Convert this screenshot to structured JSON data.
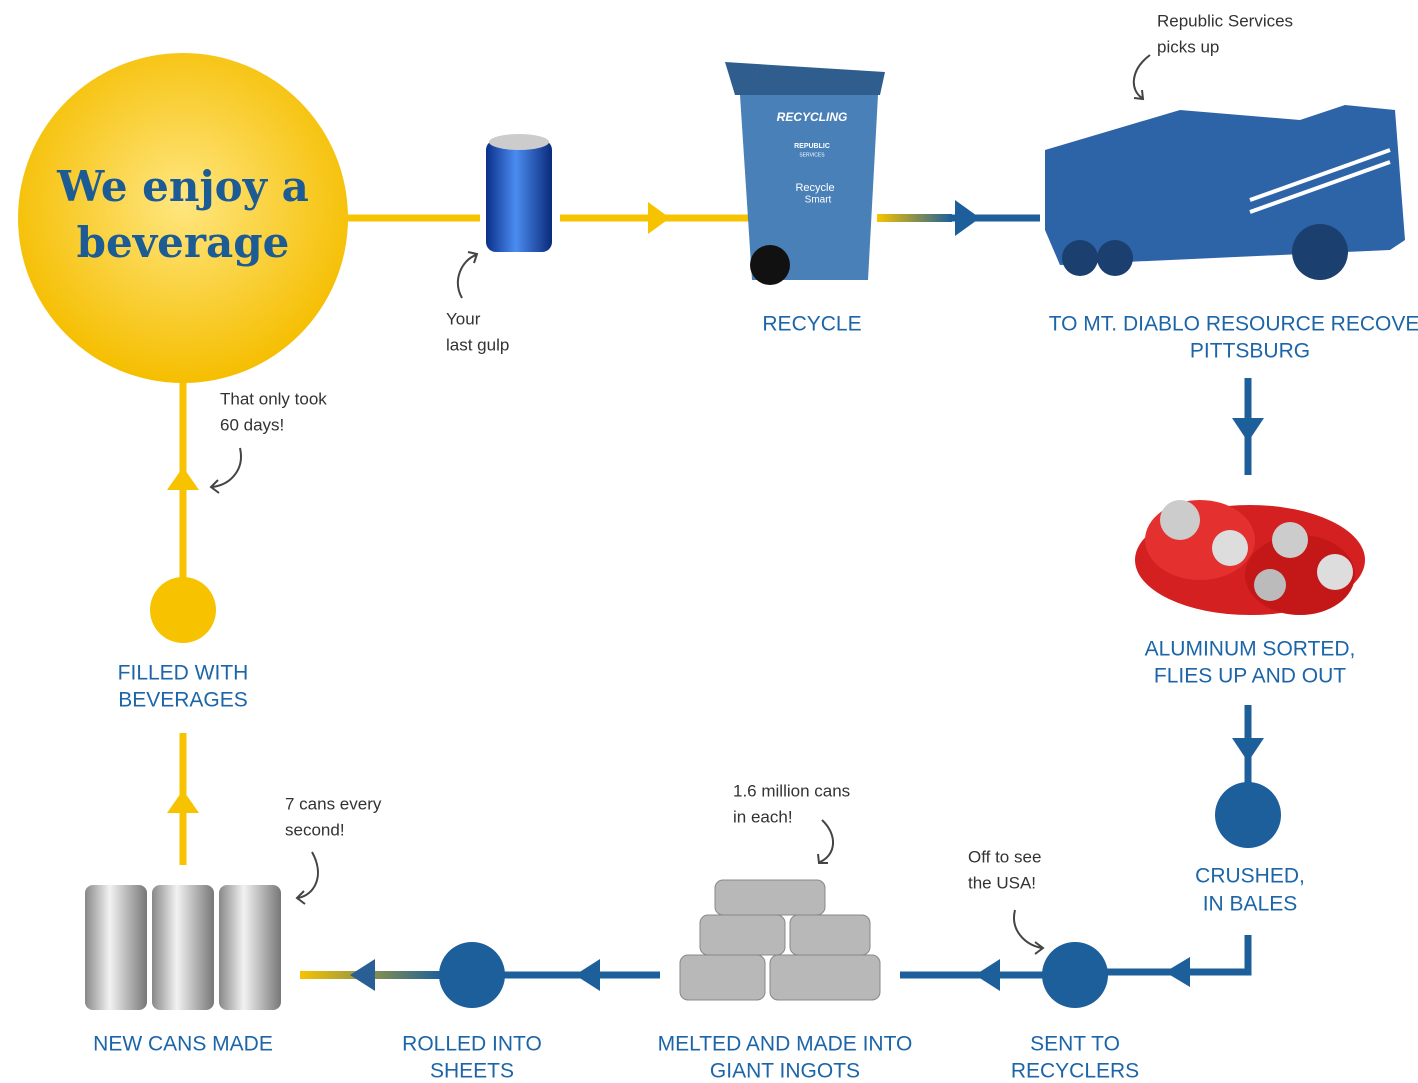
{
  "title": {
    "lines": [
      "We enjoy a",
      "beverage"
    ]
  },
  "notes": [
    {
      "lines": [
        "Your",
        "last gulp"
      ]
    },
    {
      "lines": [
        "Republic Services",
        "picks up"
      ]
    },
    {
      "lines": [
        "That only took",
        "60 days!"
      ]
    },
    {
      "lines": [
        "7 cans every",
        "second!"
      ]
    },
    {
      "lines": [
        "1.6 million cans",
        "in each!"
      ]
    },
    {
      "lines": [
        "Off to see",
        "the USA!"
      ]
    }
  ],
  "steps": [
    {
      "lines": [
        "RECYCLE"
      ]
    },
    {
      "lines": [
        "TO MT. DIABLO RESOURCE RECOVERY,",
        "PITTSBURG"
      ]
    },
    {
      "lines": [
        "ALUMINUM SORTED,",
        "FLIES UP AND OUT"
      ]
    },
    {
      "lines": [
        "CRUSHED,",
        "IN BALES"
      ]
    },
    {
      "lines": [
        "SENT TO",
        "RECYCLERS"
      ]
    },
    {
      "lines": [
        "MELTED AND MADE INTO",
        "GIANT INGOTS"
      ]
    },
    {
      "lines": [
        "ROLLED INTO",
        "SHEETS"
      ]
    },
    {
      "lines": [
        "NEW CANS MADE"
      ]
    },
    {
      "lines": [
        "FILLED WITH",
        "BEVERAGES"
      ]
    }
  ],
  "bin": {
    "label": "RECYCLING",
    "brand": "REPUBLIC",
    "sub": "SERVICES",
    "logo": [
      "Recycle",
      "Smart"
    ]
  }
}
